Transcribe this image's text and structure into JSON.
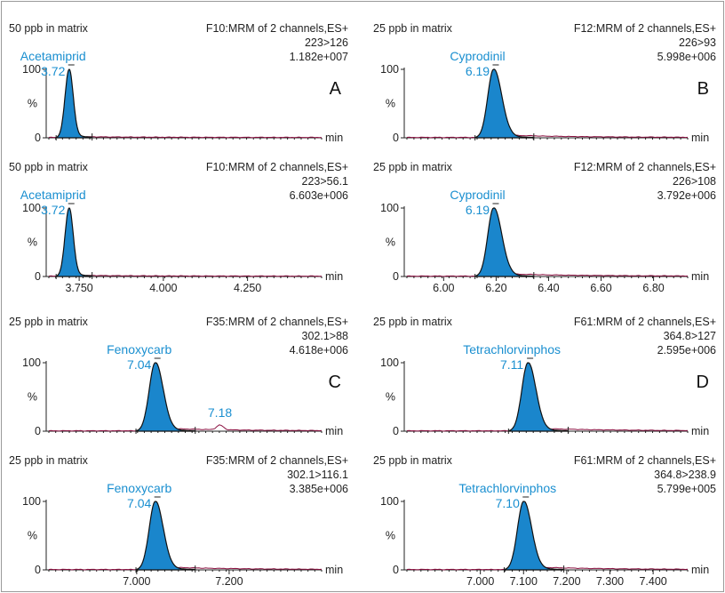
{
  "chart_data": [
    {
      "type": "line",
      "panel": "A-top",
      "matrix_label": "50 ppb in matrix",
      "channel": "F10:MRM of 2 channels,ES+",
      "transition": "223>126",
      "intensity": "1.182e+007",
      "compound": "Acetamiprid",
      "rt": "3.72",
      "letter": "A",
      "ylabels": [
        "100",
        "%",
        "0"
      ],
      "unit": "min",
      "xlim": [
        3.66,
        4.47
      ],
      "xticks": [],
      "xtick_labels": [],
      "peaks": [
        {
          "rt": 3.72,
          "height": 100,
          "half_width": 0.012
        }
      ],
      "tail": 1,
      "minor_peak": null
    },
    {
      "type": "line",
      "panel": "A-bottom",
      "matrix_label": "50 ppb in matrix",
      "channel": "F10:MRM of 2 channels,ES+",
      "transition": "223>56.1",
      "intensity": "6.603e+006",
      "compound": "Acetamiprid",
      "rt": "3.72",
      "letter": "",
      "ylabels": [
        "100",
        "%",
        "0"
      ],
      "unit": "min",
      "xlim": [
        3.66,
        4.47
      ],
      "xticks": [
        3.75,
        4.0,
        4.25
      ],
      "xtick_labels": [
        "3.750",
        "4.000",
        "4.250"
      ],
      "peaks": [
        {
          "rt": 3.72,
          "height": 100,
          "half_width": 0.012
        }
      ],
      "tail": 1,
      "minor_peak": null
    },
    {
      "type": "line",
      "panel": "B-top",
      "matrix_label": "25 ppb in matrix",
      "channel": "F12:MRM of 2 channels,ES+",
      "transition": "226>93",
      "intensity": "5.998e+006",
      "compound": "Cyprodinil",
      "rt": "6.19",
      "letter": "B",
      "ylabels": [
        "100",
        "%",
        "0"
      ],
      "unit": "min",
      "xlim": [
        5.86,
        6.93
      ],
      "xticks": [],
      "xtick_labels": [],
      "peaks": [
        {
          "rt": 6.19,
          "height": 100,
          "half_width": 0.022
        }
      ],
      "tail": 1.4,
      "minor_peak": null
    },
    {
      "type": "line",
      "panel": "B-bottom",
      "matrix_label": "25 ppb in matrix",
      "channel": "F12:MRM of 2 channels,ES+",
      "transition": "226>108",
      "intensity": "3.792e+006",
      "compound": "Cyprodinil",
      "rt": "6.19",
      "letter": "",
      "ylabels": [
        "100",
        "%",
        "0"
      ],
      "unit": "min",
      "xlim": [
        5.86,
        6.93
      ],
      "xticks": [
        6.0,
        6.2,
        6.4,
        6.6,
        6.8
      ],
      "xtick_labels": [
        "6.00",
        "6.20",
        "6.40",
        "6.60",
        "6.80"
      ],
      "peaks": [
        {
          "rt": 6.19,
          "height": 100,
          "half_width": 0.022
        }
      ],
      "tail": 1.4,
      "minor_peak": null
    },
    {
      "type": "line",
      "panel": "C-top",
      "matrix_label": "25 ppb in matrix",
      "channel": "F35:MRM of 2 channels,ES+",
      "transition": "302.1>88",
      "intensity": "4.618e+006",
      "compound": "Fenoxycarb",
      "rt": "7.04",
      "letter": "C",
      "ylabels": [
        "100",
        "%",
        "0"
      ],
      "unit": "min",
      "xlim": [
        6.81,
        7.4
      ],
      "xticks": [],
      "xtick_labels": [],
      "peaks": [
        {
          "rt": 7.04,
          "height": 100,
          "half_width": 0.013
        }
      ],
      "tail": 1.3,
      "minor_peak": {
        "rt": 7.18,
        "height": 7,
        "label": "7.18"
      }
    },
    {
      "type": "line",
      "panel": "C-bottom",
      "matrix_label": "25 ppb in matrix",
      "channel": "F35:MRM of 2 channels,ES+",
      "transition": "302.1>116.1",
      "intensity": "3.385e+006",
      "compound": "Fenoxycarb",
      "rt": "7.04",
      "letter": "",
      "ylabels": [
        "100",
        "%",
        "0"
      ],
      "unit": "min",
      "xlim": [
        6.81,
        7.4
      ],
      "xticks": [
        7.0,
        7.2
      ],
      "xtick_labels": [
        "7.000",
        "7.200"
      ],
      "peaks": [
        {
          "rt": 7.04,
          "height": 100,
          "half_width": 0.013
        }
      ],
      "tail": 1.3,
      "minor_peak": null
    },
    {
      "type": "line",
      "panel": "D-top",
      "matrix_label": "25 ppb in matrix",
      "channel": "F61:MRM of 2 channels,ES+",
      "transition": "364.8>127",
      "intensity": "2.595e+006",
      "compound": "Tetrachlorvinphos",
      "rt": "7.11",
      "letter": "D",
      "ylabels": [
        "100",
        "%",
        "0"
      ],
      "unit": "min",
      "xlim": [
        6.83,
        7.48
      ],
      "xticks": [],
      "xtick_labels": [],
      "peaks": [
        {
          "rt": 7.11,
          "height": 100,
          "half_width": 0.014
        }
      ],
      "tail": 1.3,
      "minor_peak": null
    },
    {
      "type": "line",
      "panel": "D-bottom",
      "matrix_label": "25 ppb in matrix",
      "channel": "F61:MRM of 2 channels,ES+",
      "transition": "364.8>238.9",
      "intensity": "5.799e+005",
      "compound": "Tetrachlorvinphos",
      "rt": "7.10",
      "letter": "",
      "ylabels": [
        "100",
        "%",
        "0"
      ],
      "unit": "min",
      "xlim": [
        6.83,
        7.48
      ],
      "xticks": [
        7.0,
        7.1,
        7.2,
        7.3,
        7.4
      ],
      "xtick_labels": [
        "7.000",
        "7.100",
        "7.200",
        "7.300",
        "7.400"
      ],
      "peaks": [
        {
          "rt": 7.1,
          "height": 100,
          "half_width": 0.014
        }
      ],
      "tail": 1.3,
      "minor_peak": null
    }
  ]
}
